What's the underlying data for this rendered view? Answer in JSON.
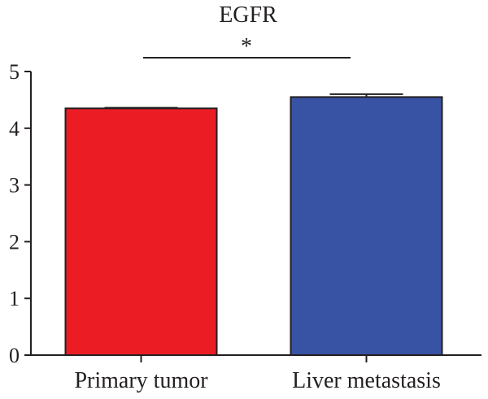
{
  "chart_data": {
    "type": "bar",
    "title": "EGFR",
    "categories": [
      "Primary tumor",
      "Liver metastasis"
    ],
    "values": [
      4.35,
      4.55
    ],
    "errors": [
      0.01,
      0.05
    ],
    "colors": [
      "#ec1c24",
      "#3953a4"
    ],
    "ylim": [
      0,
      5
    ],
    "yticks": [
      "0",
      "1",
      "2",
      "3",
      "4",
      "5"
    ],
    "significance": "*"
  }
}
